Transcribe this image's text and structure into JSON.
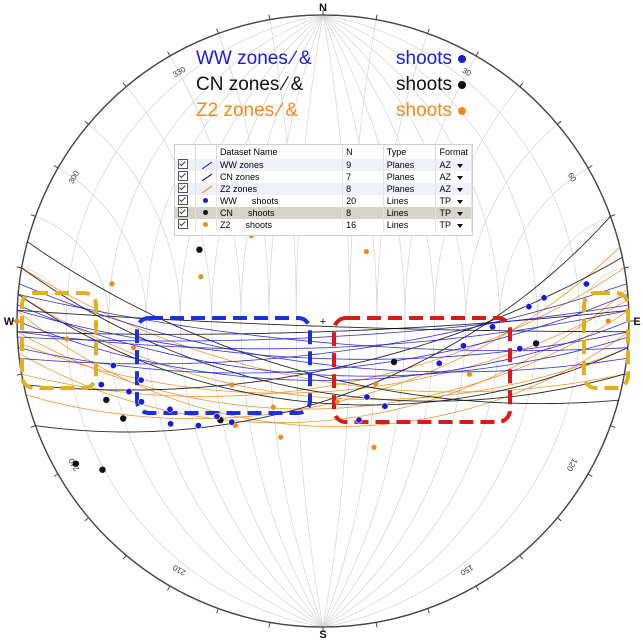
{
  "net": {
    "compass": {
      "north": "N",
      "south": "S",
      "east": "E",
      "west": "W"
    },
    "azimuth_labels": [
      "30",
      "60",
      "120",
      "150",
      "210",
      "240",
      "300",
      "330"
    ],
    "center_mark": "+",
    "colors": {
      "ww": "#1a1ad8",
      "cn": "#111111",
      "z2": "#f08a1e",
      "grid": "#d2d2d2",
      "box_blue": "#1a32d8",
      "box_red": "#d81a1a",
      "box_yellow": "#e0b020"
    }
  },
  "legend": {
    "rows": [
      {
        "label": "WW zones",
        "amp": "&",
        "shoot_label": "shoots",
        "color": "#1a1ad8"
      },
      {
        "label": "CN zones",
        "amp": "&",
        "shoot_label": "shoots",
        "color": "#111111"
      },
      {
        "label": "Z2 zones",
        "amp": "&",
        "shoot_label": "shoots",
        "color": "#f08a1e"
      }
    ]
  },
  "dataset_table": {
    "headers": [
      "Dataset Name",
      "N",
      "Type",
      "Format"
    ],
    "rows": [
      {
        "name": "WW zones",
        "n": "9",
        "type": "Planes",
        "format": "AZ",
        "symbol": "line",
        "color": "#1a1ad8",
        "selected": false
      },
      {
        "name": "CN zones",
        "n": "7",
        "type": "Planes",
        "format": "AZ",
        "symbol": "line",
        "color": "#111111",
        "selected": false
      },
      {
        "name": "Z2 zones",
        "n": "8",
        "type": "Planes",
        "format": "AZ",
        "symbol": "line",
        "color": "#f08a1e",
        "selected": false
      },
      {
        "name": "WW      shoots",
        "n": "20",
        "type": "Lines",
        "format": "TP",
        "symbol": "point",
        "color": "#1a1ad8",
        "selected": false
      },
      {
        "name": "CN      shoots",
        "n": "8",
        "type": "Lines",
        "format": "TP",
        "symbol": "point",
        "color": "#111111",
        "selected": true
      },
      {
        "name": "Z2      shoots",
        "n": "16",
        "type": "Lines",
        "format": "TP",
        "symbol": "point",
        "color": "#f08a1e",
        "selected": false
      }
    ]
  },
  "chart_data": {
    "type": "scatter",
    "projection": "equal-angle stereonet, lower hemisphere",
    "planes": {
      "ww": [
        {
          "strike": 88,
          "dip": 80
        },
        {
          "strike": 92,
          "dip": 76
        },
        {
          "strike": 85,
          "dip": 72
        },
        {
          "strike": 95,
          "dip": 82
        },
        {
          "strike": 90,
          "dip": 68
        },
        {
          "strike": 83,
          "dip": 78
        },
        {
          "strike": 97,
          "dip": 74
        },
        {
          "strike": 87,
          "dip": 84
        },
        {
          "strike": 93,
          "dip": 70
        }
      ],
      "cn": [
        {
          "strike": 70,
          "dip": 62
        },
        {
          "strike": 95,
          "dip": 60
        },
        {
          "strike": 100,
          "dip": 64
        },
        {
          "strike": 88,
          "dip": 86
        },
        {
          "strike": 78,
          "dip": 72
        },
        {
          "strike": 105,
          "dip": 70
        },
        {
          "strike": 92,
          "dip": 88
        }
      ],
      "z2": [
        {
          "strike": 80,
          "dip": 66
        },
        {
          "strike": 88,
          "dip": 58
        },
        {
          "strike": 95,
          "dip": 62
        },
        {
          "strike": 84,
          "dip": 54
        },
        {
          "strike": 100,
          "dip": 68
        },
        {
          "strike": 76,
          "dip": 60
        },
        {
          "strike": 92,
          "dip": 52
        },
        {
          "strike": 86,
          "dip": 64
        }
      ]
    },
    "lineations": {
      "ww": [
        {
          "trend": 258,
          "plunge": 20
        },
        {
          "trend": 250,
          "plunge": 22
        },
        {
          "trend": 246,
          "plunge": 24
        },
        {
          "trend": 240,
          "plunge": 30
        },
        {
          "trend": 236,
          "plunge": 28
        },
        {
          "trend": 230,
          "plunge": 34
        },
        {
          "trend": 228,
          "plunge": 40
        },
        {
          "trend": 222,
          "plunge": 42
        },
        {
          "trend": 160,
          "plunge": 52
        },
        {
          "trend": 150,
          "plunge": 58
        },
        {
          "trend": 110,
          "plunge": 46
        },
        {
          "trend": 100,
          "plunge": 40
        },
        {
          "trend": 92,
          "plunge": 32
        },
        {
          "trend": 86,
          "plunge": 22
        },
        {
          "trend": 84,
          "plunge": 18
        },
        {
          "trend": 82,
          "plunge": 8
        },
        {
          "trend": 98,
          "plunge": 24
        },
        {
          "trend": 254,
          "plunge": 16
        },
        {
          "trend": 252,
          "plunge": 26
        },
        {
          "trend": 144,
          "plunge": 52
        }
      ],
      "cn": [
        {
          "trend": 250,
          "plunge": 16
        },
        {
          "trend": 244,
          "plunge": 18
        },
        {
          "trend": 226,
          "plunge": 40
        },
        {
          "trend": 236,
          "plunge": 8
        },
        {
          "trend": 300,
          "plunge": 40
        },
        {
          "trend": 120,
          "plunge": 60
        },
        {
          "trend": 96,
          "plunge": 20
        },
        {
          "trend": 240,
          "plunge": 4
        }
      ],
      "z2": [
        {
          "trend": 270,
          "plunge": 0
        },
        {
          "trend": 266,
          "plunge": 10
        },
        {
          "trend": 280,
          "plunge": 20
        },
        {
          "trend": 262,
          "plunge": 26
        },
        {
          "trend": 290,
          "plunge": 44
        },
        {
          "trend": 320,
          "plunge": 50
        },
        {
          "trend": 32,
          "plunge": 60
        },
        {
          "trend": 140,
          "plunge": 60
        },
        {
          "trend": 158,
          "plunge": 42
        },
        {
          "trend": 210,
          "plunge": 54
        },
        {
          "trend": 200,
          "plunge": 46
        },
        {
          "trend": 220,
          "plunge": 42
        },
        {
          "trend": 90,
          "plunge": 4
        },
        {
          "trend": 110,
          "plunge": 36
        },
        {
          "trend": 170,
          "plunge": 60
        },
        {
          "trend": 235,
          "plunge": 50
        }
      ]
    }
  }
}
